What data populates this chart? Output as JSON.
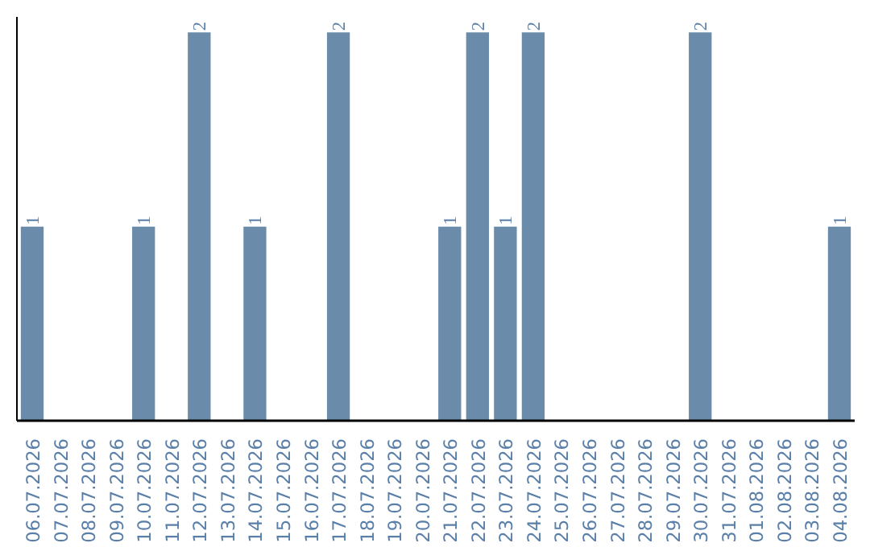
{
  "chart_data": {
    "type": "bar",
    "categories": [
      "06.07.2026",
      "07.07.2026",
      "08.07.2026",
      "09.07.2026",
      "10.07.2026",
      "11.07.2026",
      "12.07.2026",
      "13.07.2026",
      "14.07.2026",
      "15.07.2026",
      "16.07.2026",
      "17.07.2026",
      "18.07.2026",
      "19.07.2026",
      "20.07.2026",
      "21.07.2026",
      "22.07.2026",
      "23.07.2026",
      "24.07.2026",
      "25.07.2026",
      "26.07.2026",
      "27.07.2026",
      "28.07.2026",
      "29.07.2026",
      "30.07.2026",
      "31.07.2026",
      "01.08.2026",
      "02.08.2026",
      "03.08.2026",
      "04.08.2026"
    ],
    "values": [
      1,
      0,
      0,
      0,
      1,
      0,
      2,
      0,
      1,
      0,
      0,
      2,
      0,
      0,
      0,
      1,
      2,
      1,
      2,
      0,
      0,
      0,
      0,
      0,
      2,
      0,
      0,
      0,
      0,
      1
    ],
    "value_labels": [
      "1",
      null,
      null,
      null,
      "1",
      null,
      "2",
      null,
      "1",
      null,
      null,
      "2",
      null,
      null,
      null,
      "1",
      "2",
      "1",
      "2",
      null,
      null,
      null,
      null,
      null,
      "2",
      null,
      null,
      null,
      null,
      "1"
    ],
    "color": "#6a8caa",
    "grid": false,
    "tick_labels": "x"
  }
}
